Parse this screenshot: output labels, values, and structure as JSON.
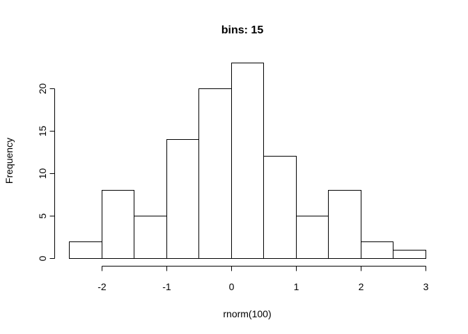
{
  "chart_data": {
    "type": "bar",
    "title": "bins: 15",
    "xlabel": "rnorm(100)",
    "ylabel": "Frequency",
    "bins": [
      {
        "start": -2.5,
        "end": -2.0,
        "count": 2
      },
      {
        "start": -2.0,
        "end": -1.5,
        "count": 8
      },
      {
        "start": -1.5,
        "end": -1.0,
        "count": 5
      },
      {
        "start": -1.0,
        "end": -0.5,
        "count": 14
      },
      {
        "start": -0.5,
        "end": 0.0,
        "count": 20
      },
      {
        "start": 0.0,
        "end": 0.5,
        "count": 23
      },
      {
        "start": 0.5,
        "end": 1.0,
        "count": 12
      },
      {
        "start": 1.0,
        "end": 1.5,
        "count": 5
      },
      {
        "start": 1.5,
        "end": 2.0,
        "count": 8
      },
      {
        "start": 2.0,
        "end": 2.5,
        "count": 2
      },
      {
        "start": 2.5,
        "end": 3.0,
        "count": 1
      }
    ],
    "xticks": [
      "-2",
      "-1",
      "0",
      "1",
      "2",
      "3"
    ],
    "yticks": [
      "0",
      "5",
      "10",
      "15",
      "20"
    ],
    "xlim": [
      -2.5,
      3.0
    ],
    "ylim": [
      0,
      23
    ],
    "grid": false,
    "colors": {
      "bar_fill": "#ffffff",
      "bar_stroke": "#000000"
    }
  }
}
